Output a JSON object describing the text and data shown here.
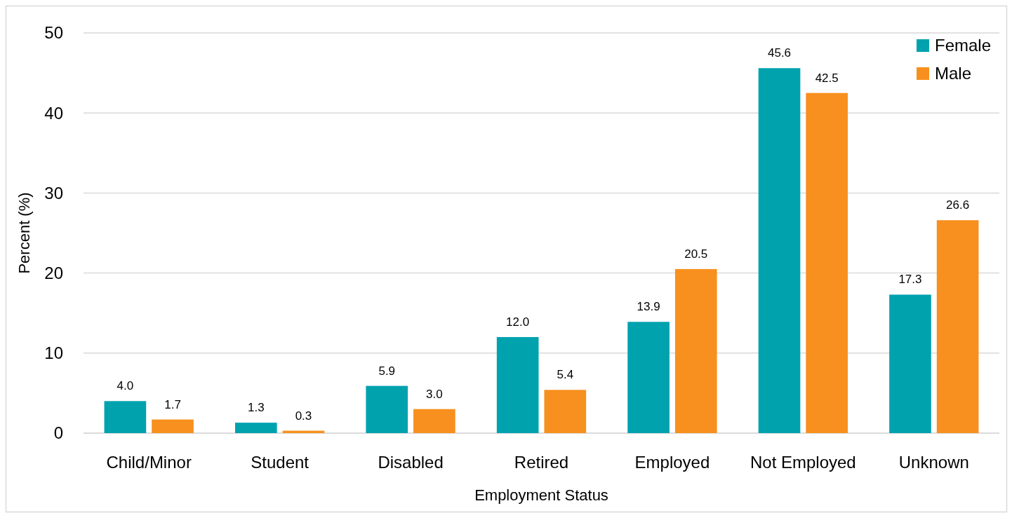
{
  "chart_data": {
    "type": "bar",
    "xlabel": "Employment Status",
    "ylabel": "Percent (%)",
    "categories": [
      "Child/Minor",
      "Student",
      "Disabled",
      "Retired",
      "Employed",
      "Not Employed",
      "Unknown"
    ],
    "series": [
      {
        "name": "Female",
        "color": "#00a2ae",
        "values": [
          4.0,
          1.3,
          5.9,
          12.0,
          13.9,
          45.6,
          17.3
        ],
        "value_labels": [
          "4.0",
          "1.3",
          "5.9",
          "12.0",
          "13.9",
          "45.6",
          "17.3"
        ]
      },
      {
        "name": "Male",
        "color": "#f7901e",
        "values": [
          1.7,
          0.3,
          3.0,
          5.4,
          20.5,
          42.5,
          26.6
        ],
        "value_labels": [
          "1.7",
          "0.3",
          "3.0",
          "5.4",
          "20.5",
          "42.5",
          "26.6"
        ]
      }
    ],
    "ylim": [
      0,
      50
    ],
    "yticks": [
      0,
      10,
      20,
      30,
      40,
      50
    ],
    "grid": "y",
    "legend": "top right"
  }
}
